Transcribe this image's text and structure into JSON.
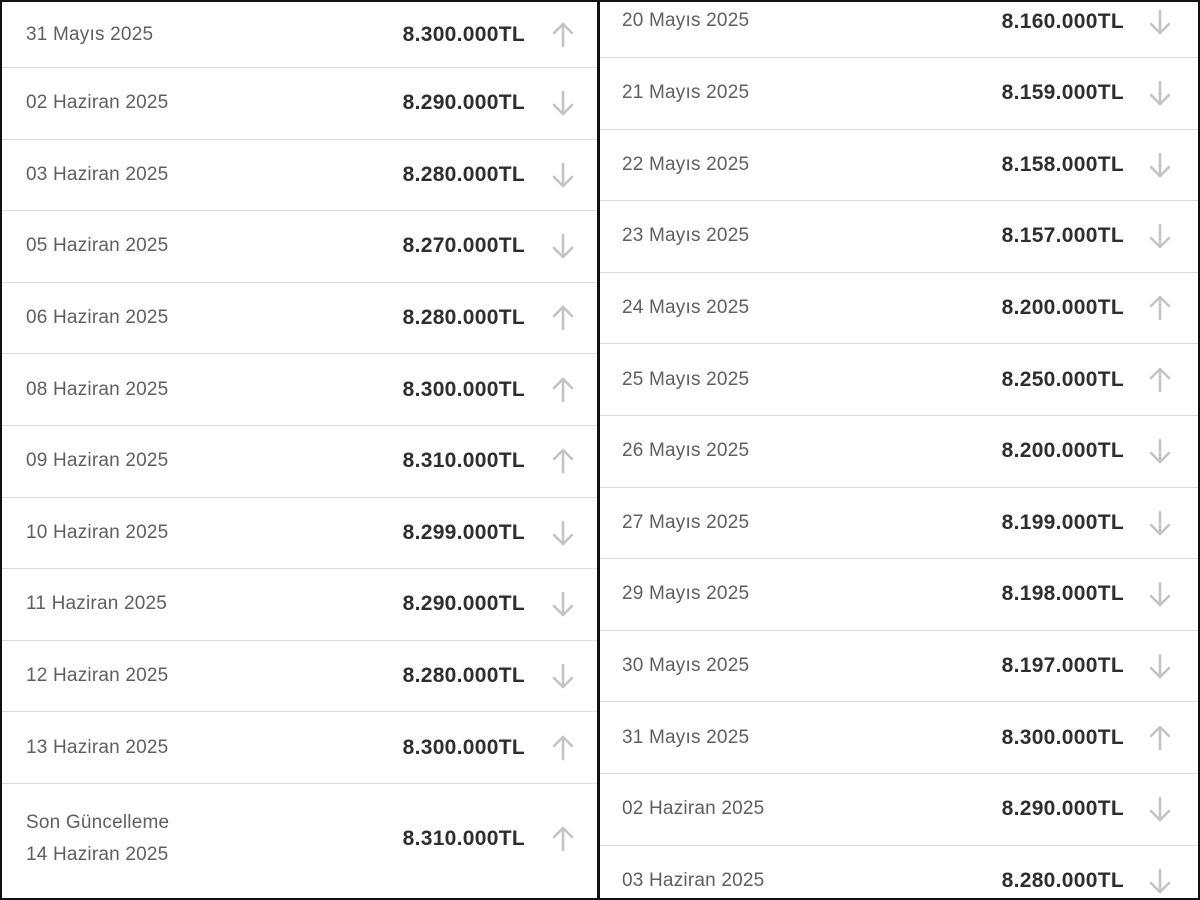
{
  "left_panel": {
    "rows": [
      {
        "date": "31 Mayıs 2025",
        "price": "8.300.000TL",
        "trend": "up"
      },
      {
        "date": "02 Haziran 2025",
        "price": "8.290.000TL",
        "trend": "down"
      },
      {
        "date": "03 Haziran 2025",
        "price": "8.280.000TL",
        "trend": "down"
      },
      {
        "date": "05 Haziran 2025",
        "price": "8.270.000TL",
        "trend": "down"
      },
      {
        "date": "06 Haziran 2025",
        "price": "8.280.000TL",
        "trend": "up"
      },
      {
        "date": "08 Haziran 2025",
        "price": "8.300.000TL",
        "trend": "up"
      },
      {
        "date": "09 Haziran 2025",
        "price": "8.310.000TL",
        "trend": "up"
      },
      {
        "date": "10 Haziran 2025",
        "price": "8.299.000TL",
        "trend": "down"
      },
      {
        "date": "11 Haziran 2025",
        "price": "8.290.000TL",
        "trend": "down"
      },
      {
        "date": "12 Haziran 2025",
        "price": "8.280.000TL",
        "trend": "down"
      },
      {
        "date": "13 Haziran 2025",
        "price": "8.300.000TL",
        "trend": "up"
      }
    ],
    "last_update": {
      "label": "Son Güncelleme",
      "date": "14 Haziran 2025",
      "price": "8.310.000TL",
      "trend": "up"
    }
  },
  "right_panel": {
    "rows": [
      {
        "date": "20 Mayıs 2025",
        "price": "8.160.000TL",
        "trend": "down"
      },
      {
        "date": "21 Mayıs 2025",
        "price": "8.159.000TL",
        "trend": "down"
      },
      {
        "date": "22 Mayıs 2025",
        "price": "8.158.000TL",
        "trend": "down"
      },
      {
        "date": "23 Mayıs 2025",
        "price": "8.157.000TL",
        "trend": "down"
      },
      {
        "date": "24 Mayıs 2025",
        "price": "8.200.000TL",
        "trend": "up"
      },
      {
        "date": "25 Mayıs 2025",
        "price": "8.250.000TL",
        "trend": "up"
      },
      {
        "date": "26 Mayıs 2025",
        "price": "8.200.000TL",
        "trend": "down"
      },
      {
        "date": "27 Mayıs 2025",
        "price": "8.199.000TL",
        "trend": "down"
      },
      {
        "date": "29 Mayıs 2025",
        "price": "8.198.000TL",
        "trend": "down"
      },
      {
        "date": "30 Mayıs 2025",
        "price": "8.197.000TL",
        "trend": "down"
      },
      {
        "date": "31 Mayıs 2025",
        "price": "8.300.000TL",
        "trend": "up"
      },
      {
        "date": "02 Haziran 2025",
        "price": "8.290.000TL",
        "trend": "down"
      },
      {
        "date": "03 Haziran 2025",
        "price": "8.280.000TL",
        "trend": "down"
      }
    ]
  },
  "colors": {
    "date_text": "#5f5f5f",
    "price_text": "#2e2e2e",
    "arrow": "#c4c4c4",
    "divider": "#dcdcdc",
    "frame": "#111111"
  }
}
